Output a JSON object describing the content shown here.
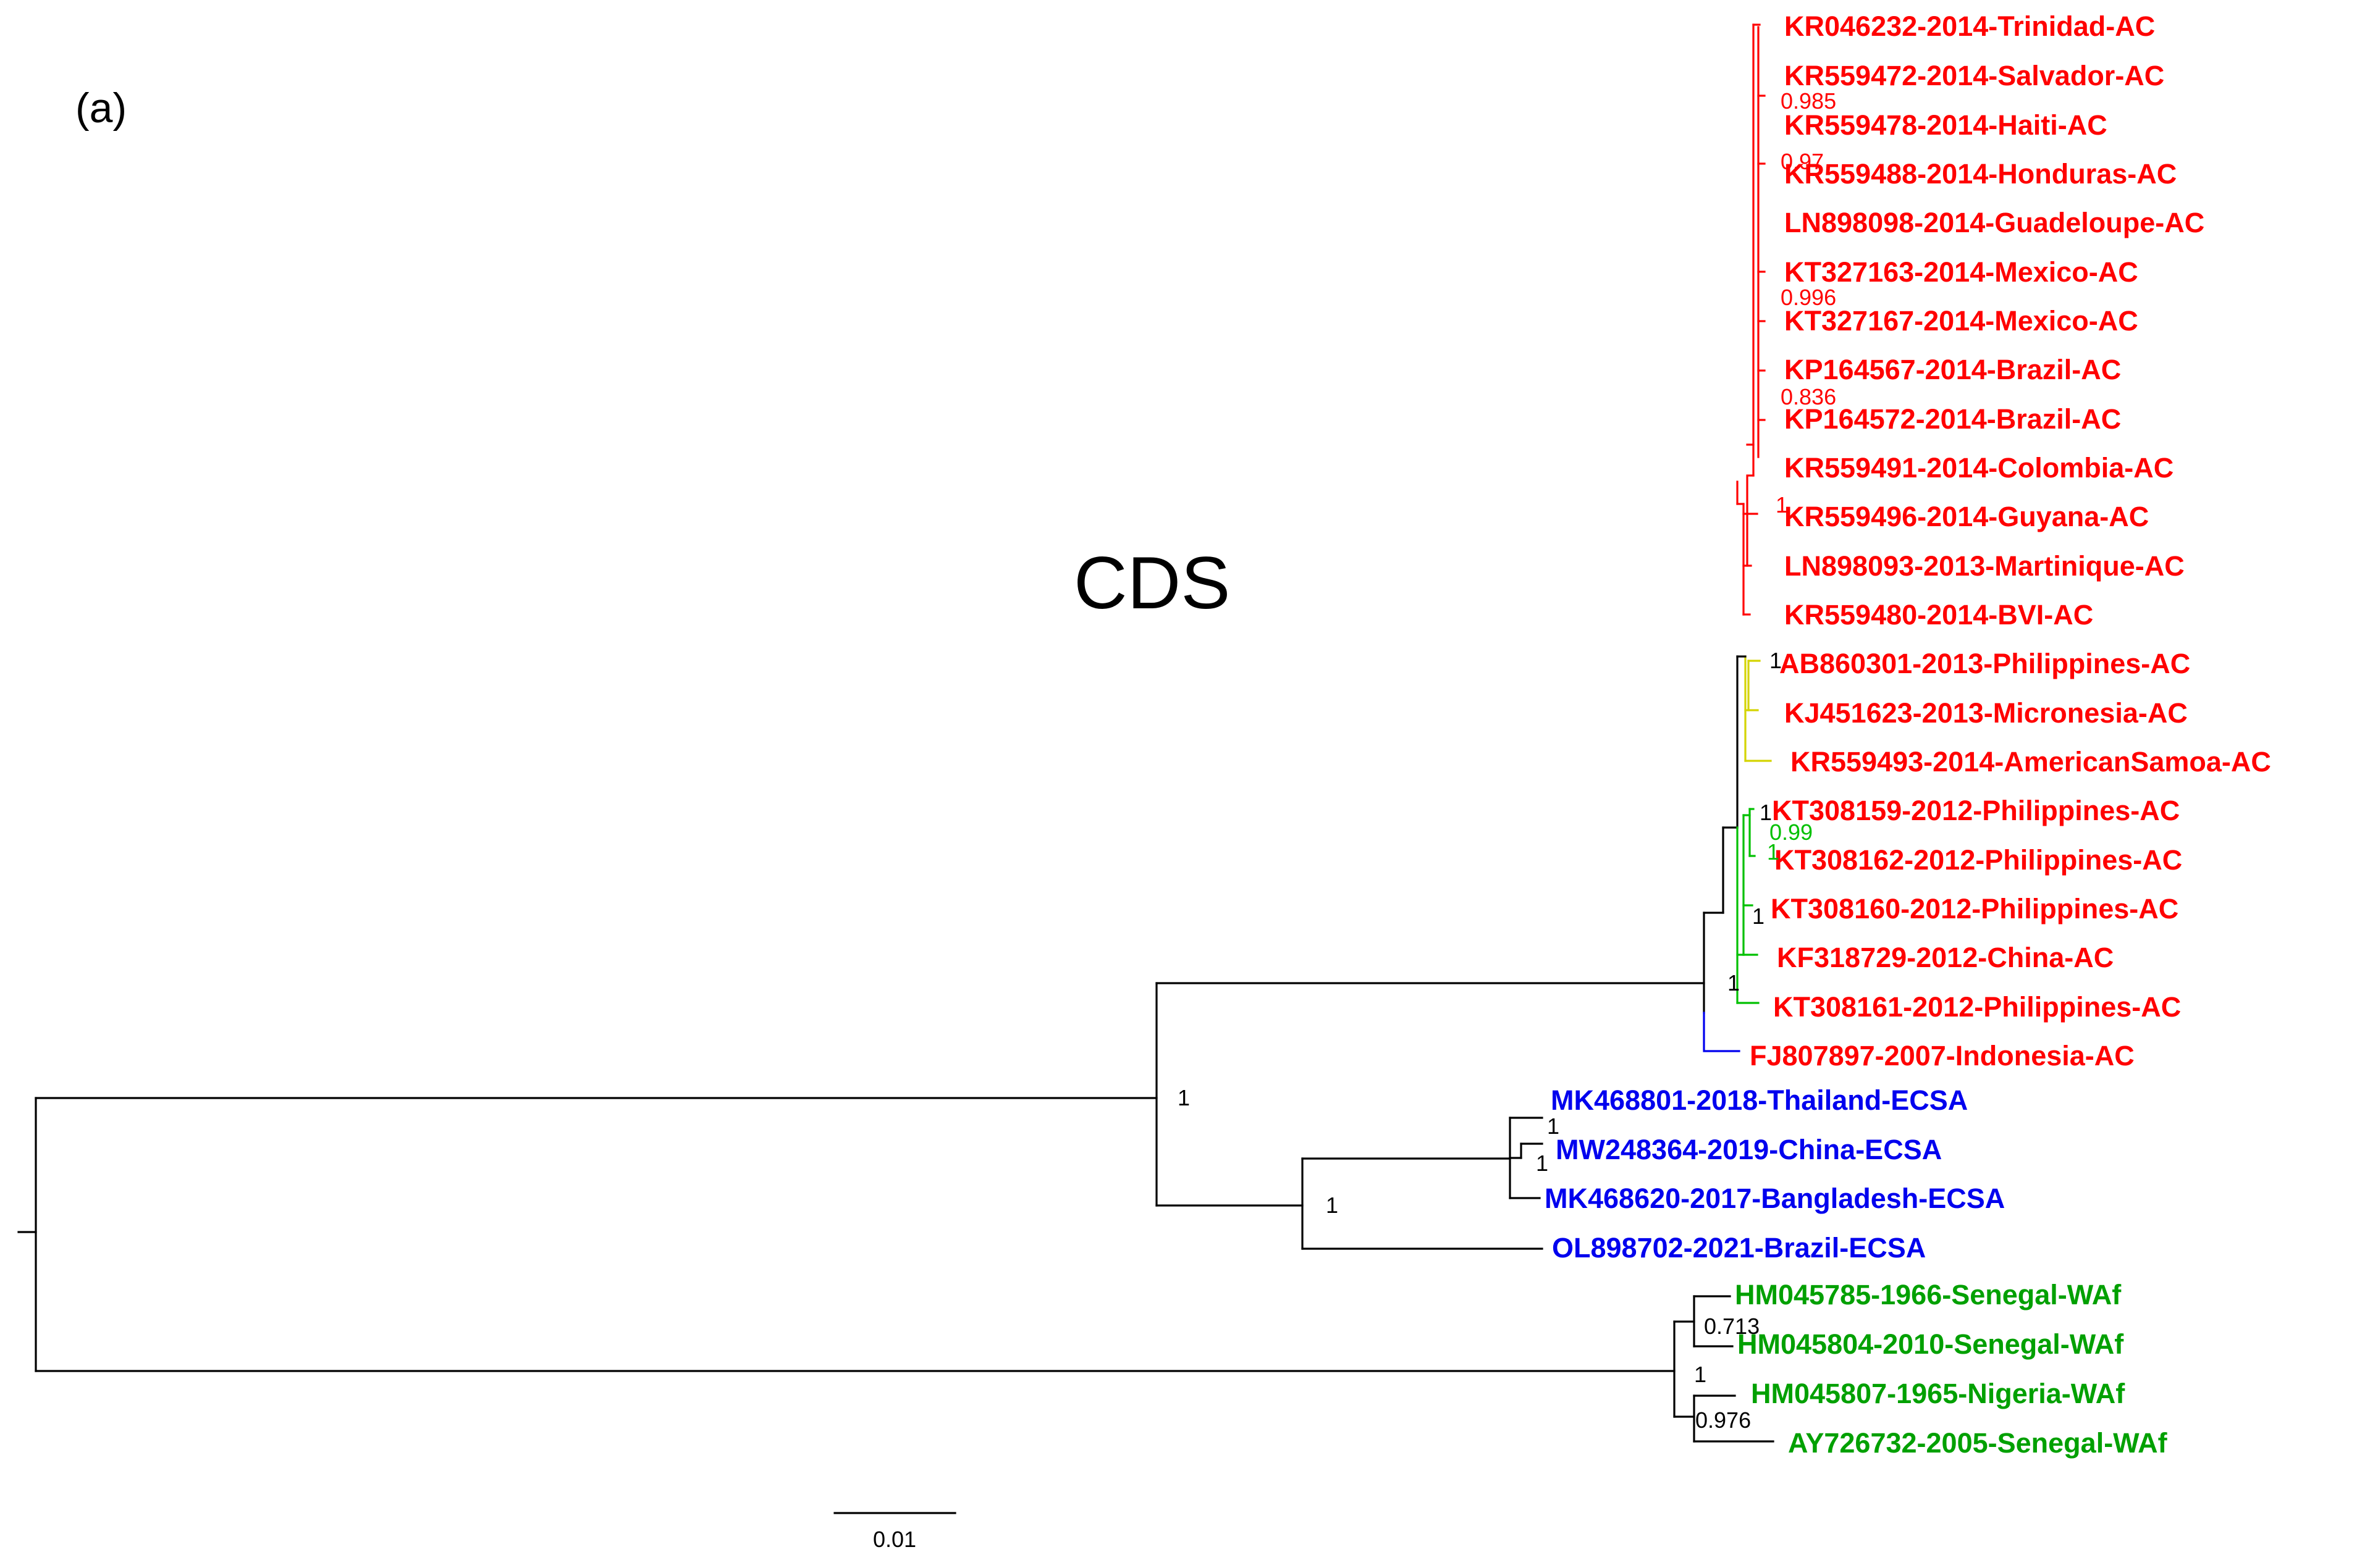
{
  "panel_label": "(a)",
  "title": "CDS",
  "colors": {
    "asian_american": "#ff0000",
    "asian_yellow": "#d4d400",
    "asian_green": "#00c000",
    "ecsa": "#0000ee",
    "waf": "#00a000",
    "branch": "#000000",
    "support_black": "#000000"
  },
  "clades": {
    "asian": {
      "color_key": "asian_american",
      "tips": [
        "KR046232-2014-Trinidad-AC",
        "KR559472-2014-Salvador-AC",
        "KR559478-2014-Haiti-AC",
        "KR559488-2014-Honduras-AC",
        "LN898098-2014-Guadeloupe-AC",
        "KT327163-2014-Mexico-AC",
        "KT327167-2014-Mexico-AC",
        "KP164567-2014-Brazil-AC",
        "KP164572-2014-Brazil-AC",
        "KR559491-2014-Colombia-AC",
        "KR559496-2014-Guyana-AC",
        "LN898093-2013-Martinique-AC",
        "KR559480-2014-BVI-AC",
        "AB860301-2013-Philippines-AC",
        "KJ451623-2013-Micronesia-AC",
        "KR559493-2014-AmericanSamoa-AC",
        "KT308159-2012-Philippines-AC",
        "KT308162-2012-Philippines-AC",
        "KT308160-2012-Philippines-AC",
        "KF318729-2012-China-AC",
        "KT308161-2012-Philippines-AC",
        "FJ807897-2007-Indonesia-AC"
      ]
    },
    "ecsa": {
      "color_key": "ecsa",
      "tips": [
        "MK468801-2018-Thailand-ECSA",
        "MW248364-2019-China-ECSA",
        "MK468620-2017-Bangladesh-ECSA",
        "OL898702-2021-Brazil-ECSA"
      ]
    },
    "waf": {
      "color_key": "waf",
      "tips": [
        "HM045785-1966-Senegal-WAf",
        "HM045804-2010-Senegal-WAf",
        "HM045807-1965-Nigeria-WAf",
        "AY726732-2005-Senegal-WAf"
      ]
    }
  },
  "support_values": {
    "red_0985": "0.985",
    "red_097": "0.97",
    "red_0996": "0.996",
    "red_0836": "0.836",
    "red_1": "1",
    "yellow_1": "1",
    "asian_1": "1",
    "green_099": "0.99",
    "green_1a": "1",
    "green_1b": "1",
    "indo_1": "1",
    "root_split_1": "1",
    "ecsa_1": "1",
    "ecsa_inner_1a": "1",
    "ecsa_inner_1b": "1",
    "waf_0713": "0.713",
    "waf_1": "1",
    "waf_0976": "0.976"
  },
  "scale_bar": {
    "label": "0.01",
    "value": 0.01
  }
}
